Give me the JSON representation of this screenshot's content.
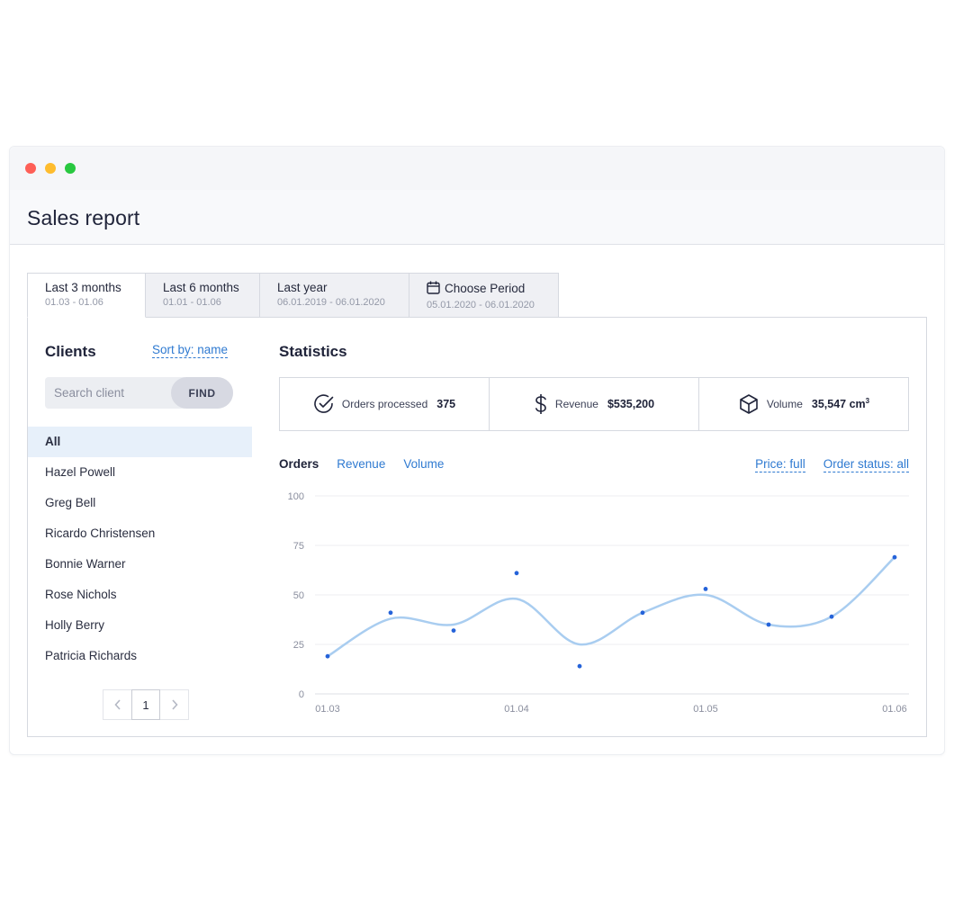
{
  "window": {
    "title": "Sales report"
  },
  "tabs": [
    {
      "label": "Last 3 months",
      "range": "01.03 - 01.06",
      "active": true
    },
    {
      "label": "Last 6 months",
      "range": "01.01 - 01.06"
    },
    {
      "label": "Last year",
      "range": "06.01.2019 - 06.01.2020"
    },
    {
      "label": "Choose Period",
      "range": "05.01.2020 - 06.01.2020",
      "icon": "calendar-icon"
    }
  ],
  "clients": {
    "title": "Clients",
    "sort_label": "Sort by: name",
    "search_placeholder": "Search client",
    "find_label": "FIND",
    "items": [
      "All",
      "Hazel Powell",
      "Greg Bell",
      "Ricardo Christensen",
      "Bonnie Warner",
      "Rose Nichols",
      "Holly Berry",
      "Patricia Richards"
    ],
    "selected": "All",
    "pagination": {
      "current_page": "1"
    }
  },
  "statistics": {
    "title": "Statistics",
    "cards": [
      {
        "icon": "check-circle-icon",
        "label": "Orders processed",
        "value": "375"
      },
      {
        "icon": "dollar-icon",
        "label": "Revenue",
        "value": "$535,200"
      },
      {
        "icon": "box-icon",
        "label": "Volume",
        "value": "35,547 cm",
        "unit_sup": "3"
      }
    ]
  },
  "chart_tabs": [
    "Orders",
    "Revenue",
    "Volume"
  ],
  "chart_tabs_active": "Orders",
  "filters": {
    "price": "Price: full",
    "order_status": "Order status: all"
  },
  "colors": {
    "accent": "#2f7ad1",
    "line": "#a9cdf0",
    "point": "#2563d9",
    "selected_row": "#e7f0fa"
  },
  "chart_data": {
    "type": "line",
    "x_labels": [
      "01.03",
      "01.04",
      "01.05",
      "01.06"
    ],
    "y_ticks": [
      0,
      25,
      50,
      75,
      100
    ],
    "ylim": [
      0,
      100
    ],
    "grid": true,
    "series": [
      {
        "kind": "smoothed-line",
        "values": [
          19,
          38,
          35,
          48,
          25,
          41,
          50,
          35,
          39,
          69
        ]
      },
      {
        "kind": "points",
        "values": [
          19,
          41,
          32,
          61,
          14,
          41,
          53,
          35,
          39,
          69
        ]
      }
    ]
  }
}
